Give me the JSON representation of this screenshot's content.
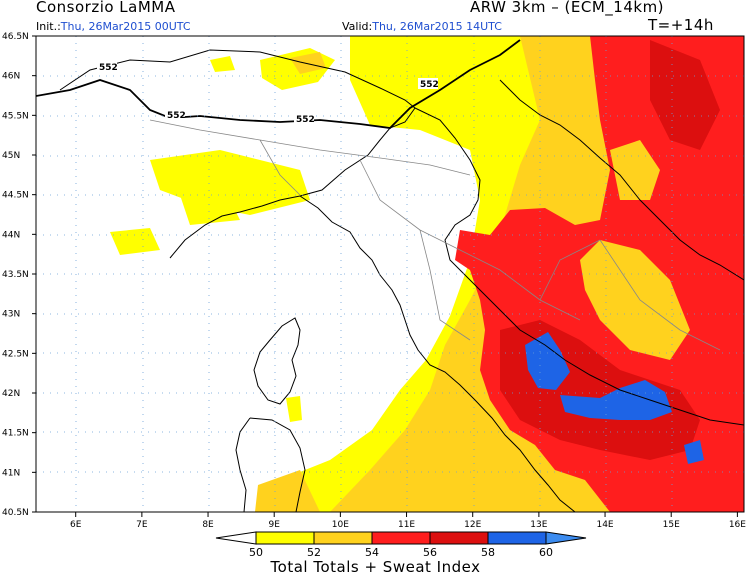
{
  "header": {
    "left_title": "Consorzio LaMMA",
    "right_title": "ARW 3km – (ECM_14km)",
    "init_label": "Init.:",
    "init_value": "Thu, 26Mar2015 00UTC",
    "valid_label": "Valid:",
    "valid_value": "Thu, 26Mar2015 14UTC",
    "lead_time": "T=+14h"
  },
  "map": {
    "lon_ticks": [
      "6E",
      "7E",
      "8E",
      "9E",
      "10E",
      "11E",
      "12E",
      "13E",
      "14E",
      "15E",
      "16E"
    ],
    "lat_ticks": [
      "46.5N",
      "46N",
      "45.5N",
      "45N",
      "44.5N",
      "44N",
      "43.5N",
      "43N",
      "42.5N",
      "42N",
      "41.5N",
      "41N",
      "40.5N"
    ],
    "lon_range": [
      5.4,
      16.1
    ],
    "lat_range": [
      40.5,
      46.5
    ],
    "contour_labels": [
      "552",
      "552",
      "552",
      "552"
    ],
    "colors": {
      "white": "#ffffff",
      "yellow": "#ffff00",
      "gold": "#ffd21e",
      "red": "#ff1e1e",
      "darkred": "#dc0f0f",
      "blue": "#1e64e6"
    }
  },
  "colorbar": {
    "labels": [
      "50",
      "52",
      "54",
      "56",
      "58",
      "60"
    ],
    "colors": [
      "#ffffff",
      "#ffff00",
      "#ffd21e",
      "#ff1e1e",
      "#dc0f0f",
      "#1e64e6",
      "#3c8cf0"
    ],
    "title": "Total Totals + Sweat Index"
  }
}
